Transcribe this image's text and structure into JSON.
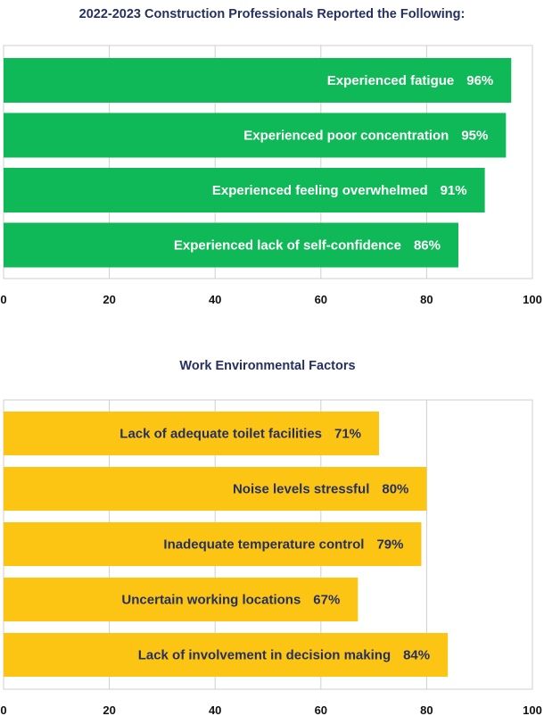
{
  "chart_data": [
    {
      "type": "bar",
      "orientation": "horizontal",
      "title": "2022-2023 Construction Professionals Reported the Following:",
      "categories": [
        "Experienced fatigue",
        "Experienced poor concentration",
        "Experienced feeling overwhelmed",
        "Experienced lack of self-confidence"
      ],
      "values": [
        96,
        95,
        91,
        86
      ],
      "value_labels": [
        "96%",
        "95%",
        "91%",
        "86%"
      ],
      "xlim": [
        0,
        100
      ],
      "xticks": [
        "0",
        "20",
        "40",
        "60",
        "80",
        "100"
      ],
      "grid": true,
      "bar_color": "#10b957",
      "label_color": "#ffffff"
    },
    {
      "type": "bar",
      "orientation": "horizontal",
      "title": "Work Environmental Factors",
      "categories": [
        "Lack of adequate toilet facilities",
        "Noise levels stressful",
        "Inadequate temperature control",
        "Uncertain working locations",
        "Lack of involvement in decision making"
      ],
      "values": [
        71,
        80,
        79,
        67,
        84
      ],
      "value_labels": [
        "71%",
        "80%",
        "79%",
        "67%",
        "84%"
      ],
      "xlim": [
        0,
        100
      ],
      "xticks": [
        "0",
        "20",
        "40",
        "60",
        "80",
        "100"
      ],
      "grid": true,
      "bar_color": "#fcc514",
      "label_color": "#26305f"
    }
  ]
}
